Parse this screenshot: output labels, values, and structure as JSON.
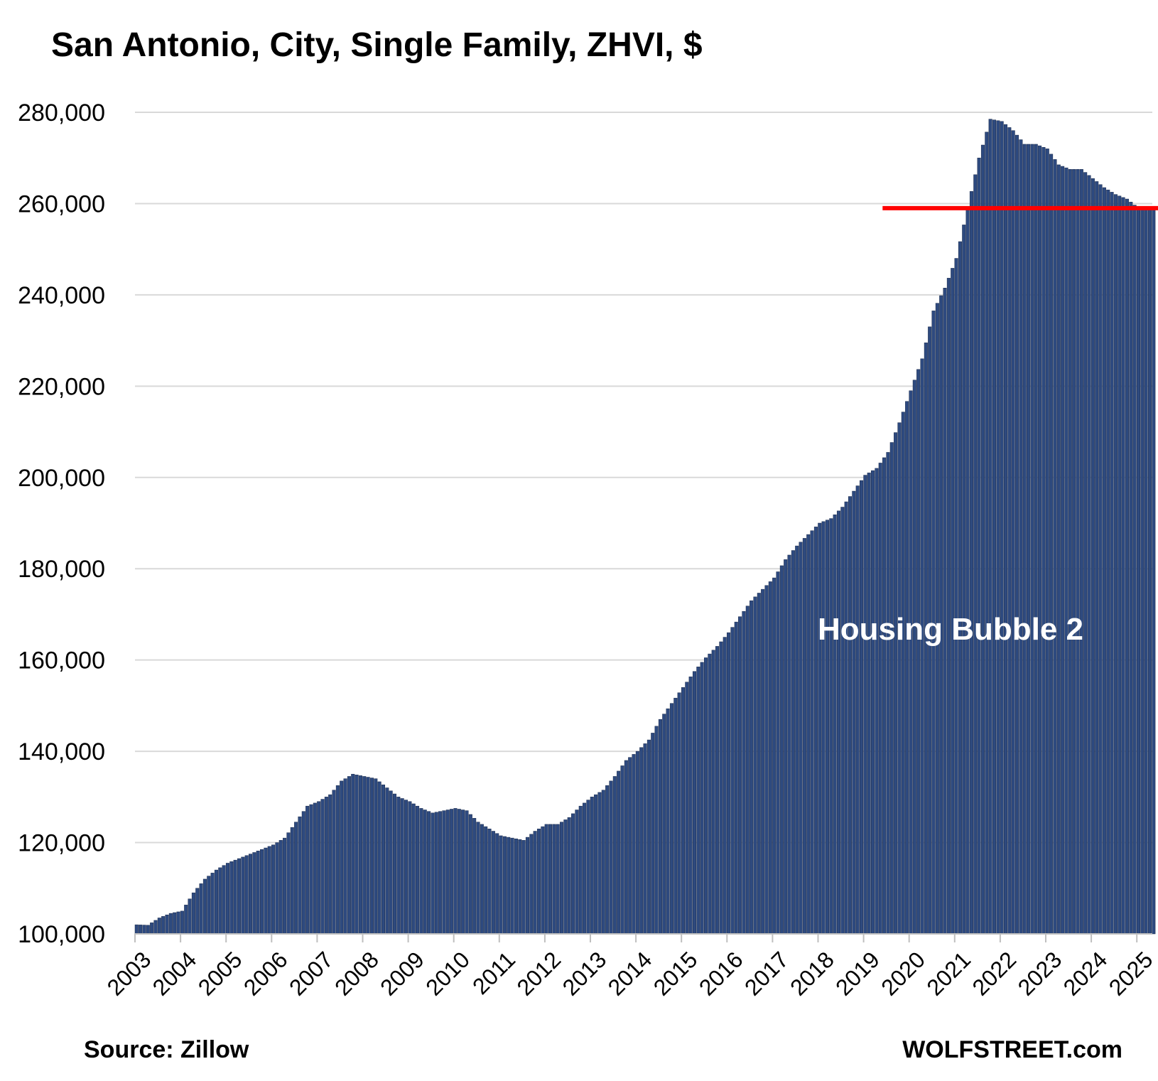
{
  "chart_data": {
    "type": "bar",
    "title": "San Antonio, City, Single Family, ZHVI, $",
    "xlabel": "",
    "ylabel": "",
    "ylim": [
      100000,
      280000
    ],
    "yticks": [
      100000,
      120000,
      140000,
      160000,
      180000,
      200000,
      220000,
      240000,
      260000,
      280000
    ],
    "ytick_labels": [
      "100,000",
      "120,000",
      "140,000",
      "160,000",
      "180,000",
      "200,000",
      "220,000",
      "240,000",
      "260,000",
      "280,000"
    ],
    "xtick_labels": [
      "2003",
      "2004",
      "2005",
      "2006",
      "2007",
      "2008",
      "2009",
      "2010",
      "2011",
      "2012",
      "2013",
      "2014",
      "2015",
      "2016",
      "2017",
      "2018",
      "2019",
      "2020",
      "2021",
      "2022",
      "2023",
      "2024",
      "2025"
    ],
    "x_start": "2003-01",
    "frequency": "monthly",
    "grid": true,
    "bar_color": "#2e4a7f",
    "reference_line": {
      "value": 259000,
      "from": "2019-06",
      "color": "#ff0000"
    },
    "annotation": "Housing Bubble 2",
    "keyframes": [
      [
        "2003-01",
        102000
      ],
      [
        "2003-04",
        101900
      ],
      [
        "2003-07",
        103500
      ],
      [
        "2003-10",
        104500
      ],
      [
        "2004-01",
        105000
      ],
      [
        "2004-04",
        109000
      ],
      [
        "2004-07",
        112000
      ],
      [
        "2004-10",
        114000
      ],
      [
        "2005-01",
        115500
      ],
      [
        "2005-04",
        116500
      ],
      [
        "2005-07",
        117500
      ],
      [
        "2005-10",
        118500
      ],
      [
        "2006-01",
        119500
      ],
      [
        "2006-04",
        121000
      ],
      [
        "2006-07",
        124500
      ],
      [
        "2006-10",
        128000
      ],
      [
        "2007-01",
        129000
      ],
      [
        "2007-04",
        130500
      ],
      [
        "2007-07",
        133500
      ],
      [
        "2007-10",
        135000
      ],
      [
        "2008-01",
        134500
      ],
      [
        "2008-04",
        134000
      ],
      [
        "2008-07",
        132000
      ],
      [
        "2008-10",
        130000
      ],
      [
        "2009-01",
        129000
      ],
      [
        "2009-04",
        127500
      ],
      [
        "2009-07",
        126500
      ],
      [
        "2009-10",
        127000
      ],
      [
        "2010-01",
        127500
      ],
      [
        "2010-04",
        127000
      ],
      [
        "2010-07",
        124500
      ],
      [
        "2010-10",
        123000
      ],
      [
        "2011-01",
        121500
      ],
      [
        "2011-04",
        121000
      ],
      [
        "2011-07",
        120500
      ],
      [
        "2011-10",
        122500
      ],
      [
        "2012-01",
        124000
      ],
      [
        "2012-04",
        124000
      ],
      [
        "2012-07",
        125500
      ],
      [
        "2012-10",
        128000
      ],
      [
        "2013-01",
        130000
      ],
      [
        "2013-04",
        131500
      ],
      [
        "2013-07",
        134500
      ],
      [
        "2013-10",
        138000
      ],
      [
        "2014-01",
        140000
      ],
      [
        "2014-04",
        142500
      ],
      [
        "2014-07",
        147000
      ],
      [
        "2014-10",
        150500
      ],
      [
        "2015-01",
        154000
      ],
      [
        "2015-04",
        157500
      ],
      [
        "2015-07",
        160500
      ],
      [
        "2015-10",
        163000
      ],
      [
        "2016-01",
        166000
      ],
      [
        "2016-04",
        169500
      ],
      [
        "2016-07",
        173000
      ],
      [
        "2016-10",
        175500
      ],
      [
        "2017-01",
        178000
      ],
      [
        "2017-04",
        182000
      ],
      [
        "2017-07",
        185000
      ],
      [
        "2017-10",
        187500
      ],
      [
        "2018-01",
        190000
      ],
      [
        "2018-04",
        191000
      ],
      [
        "2018-07",
        193500
      ],
      [
        "2018-10",
        197000
      ],
      [
        "2019-01",
        200500
      ],
      [
        "2019-04",
        202000
      ],
      [
        "2019-07",
        205500
      ],
      [
        "2019-10",
        212000
      ],
      [
        "2020-01",
        219000
      ],
      [
        "2020-04",
        226000
      ],
      [
        "2020-07",
        236500
      ],
      [
        "2020-10",
        241500
      ],
      [
        "2021-01",
        248000
      ],
      [
        "2021-04",
        259000
      ],
      [
        "2021-07",
        270000
      ],
      [
        "2021-10",
        278500
      ],
      [
        "2022-01",
        278000
      ],
      [
        "2022-04",
        276000
      ],
      [
        "2022-07",
        273000
      ],
      [
        "2022-10",
        273000
      ],
      [
        "2023-01",
        272000
      ],
      [
        "2023-04",
        268500
      ],
      [
        "2023-07",
        267500
      ],
      [
        "2023-10",
        267500
      ],
      [
        "2024-01",
        265500
      ],
      [
        "2024-04",
        263500
      ],
      [
        "2024-07",
        262000
      ],
      [
        "2024-10",
        261000
      ],
      [
        "2025-01",
        259000
      ]
    ]
  },
  "footer": {
    "source": "Source: Zillow",
    "brand": "WOLFSTREET.com"
  }
}
